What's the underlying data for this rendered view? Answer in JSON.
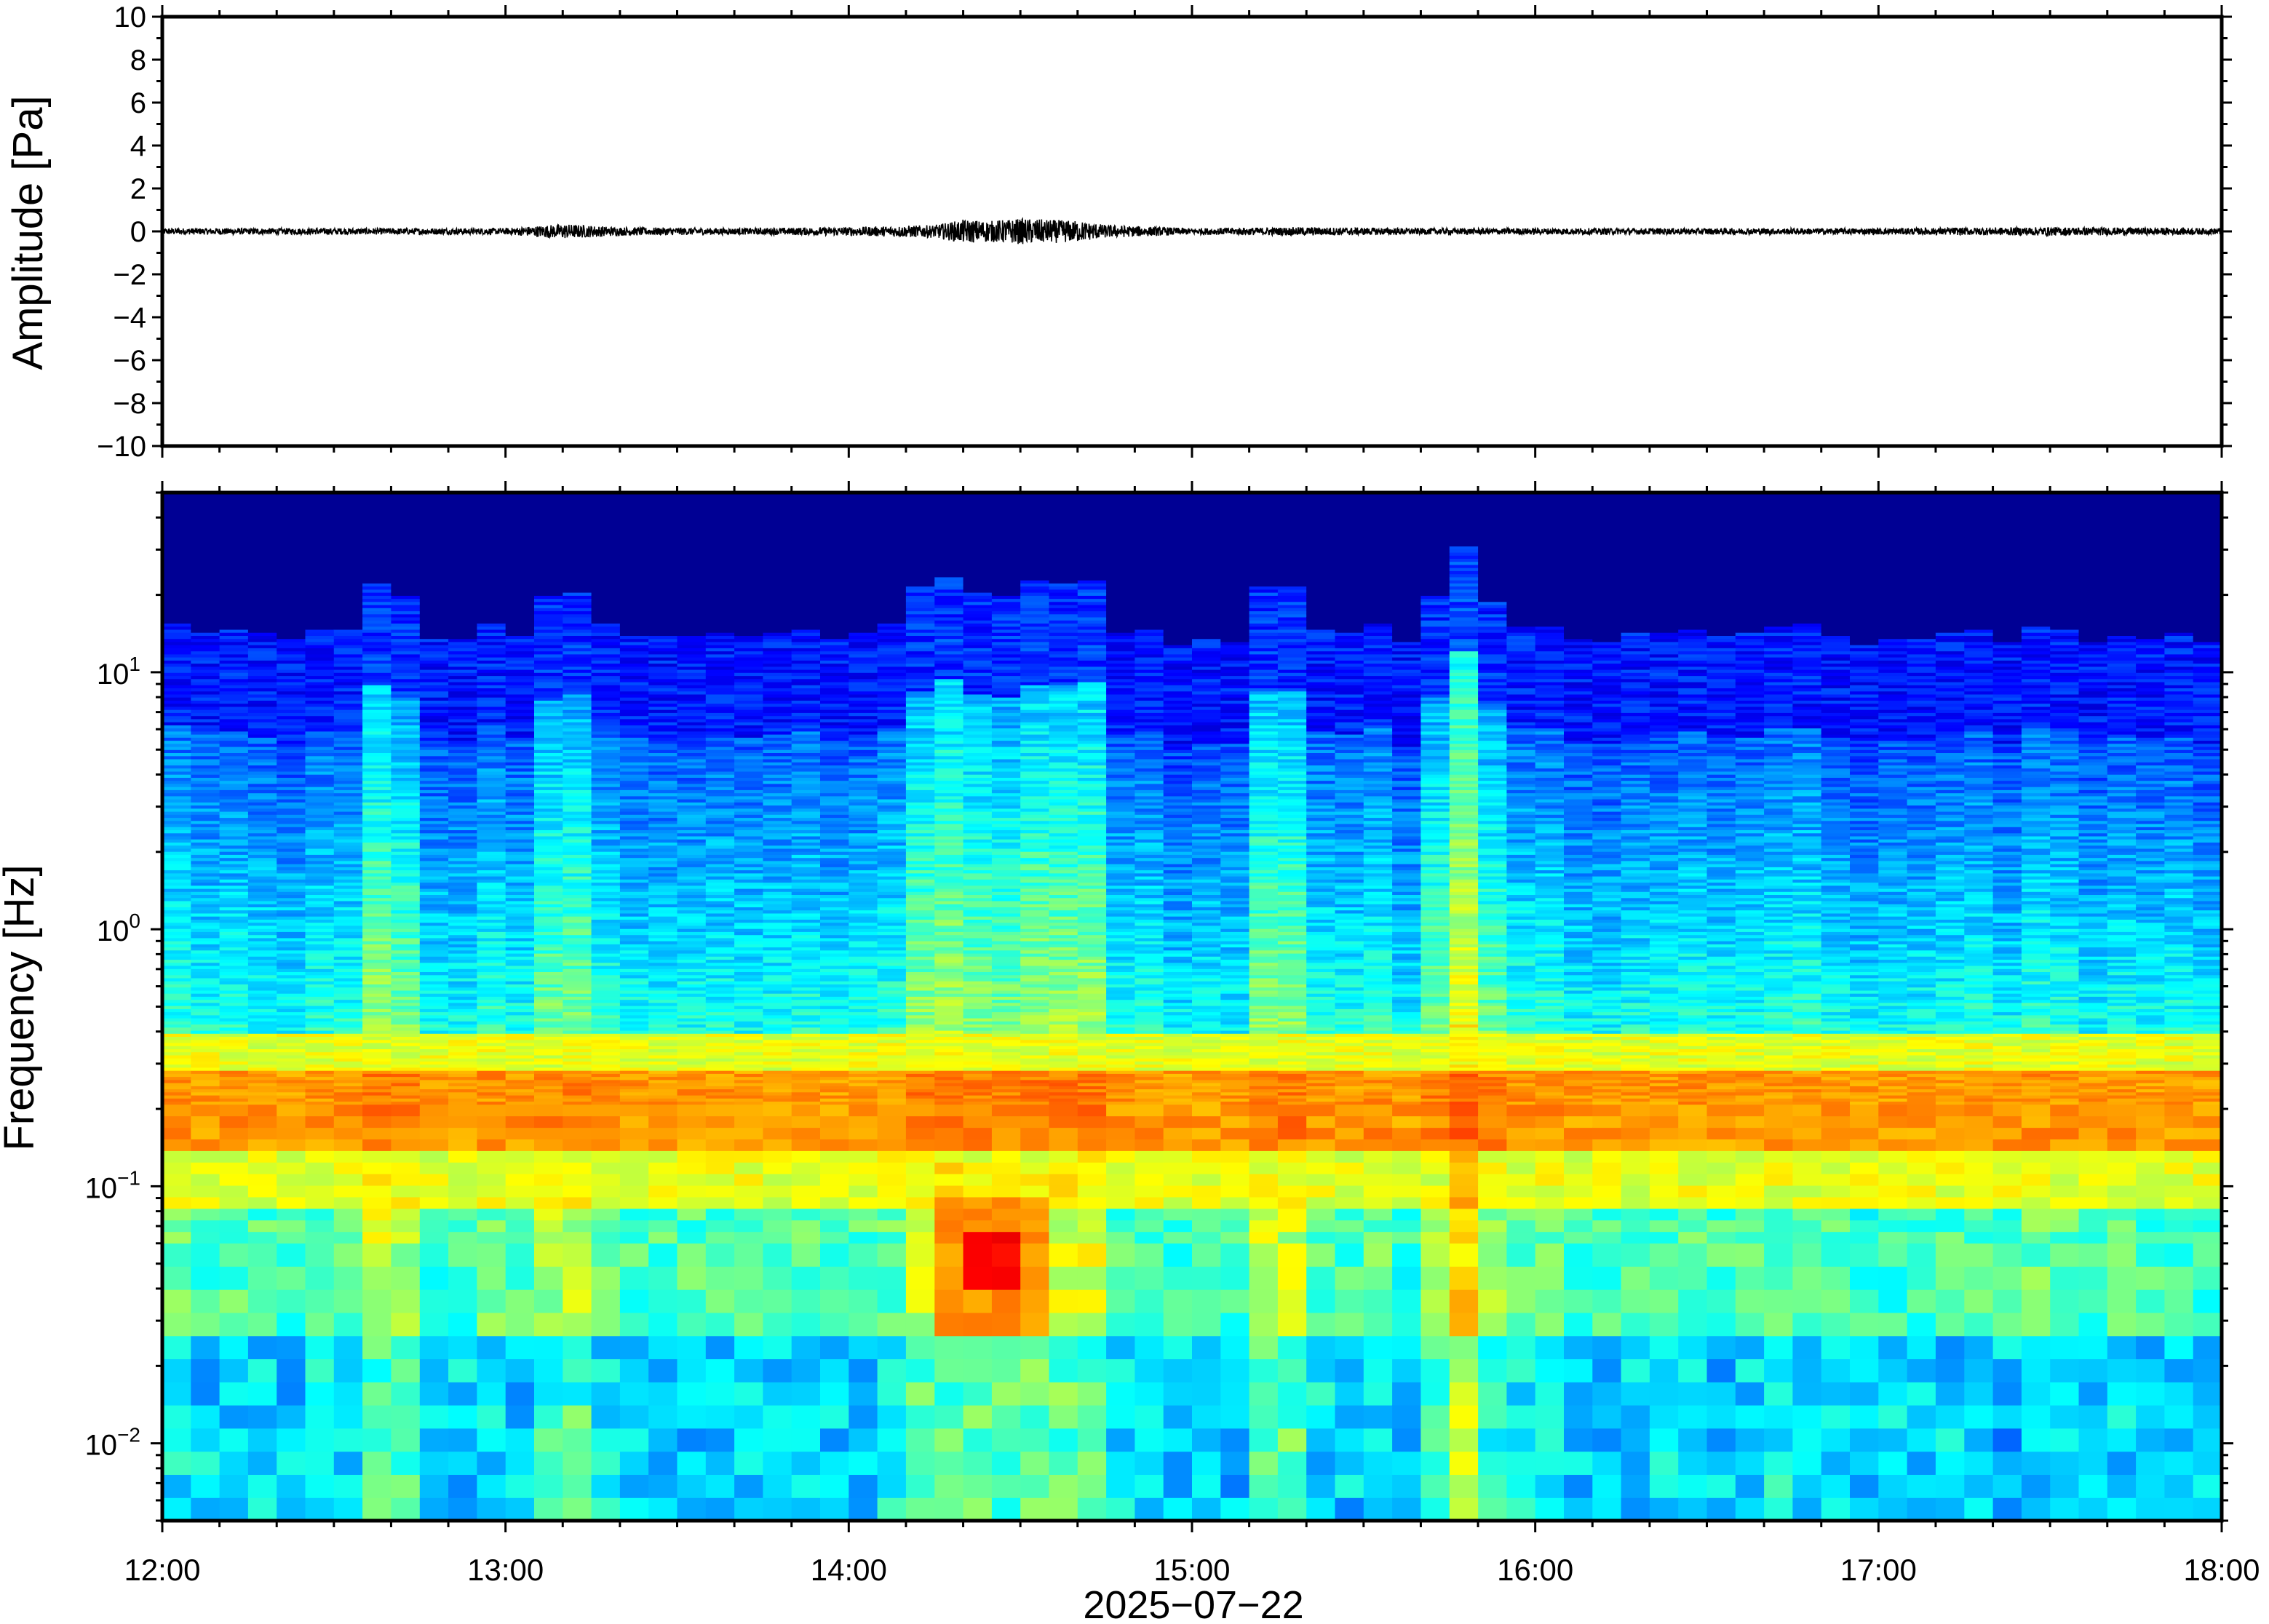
{
  "chart_data": [
    {
      "type": "line",
      "ylabel": "Amplitude [Pa]",
      "ylim": [
        -10,
        10
      ],
      "yticks": [
        10,
        8,
        6,
        4,
        2,
        0,
        -2,
        -4,
        -6,
        -8,
        -10
      ],
      "ytick_labels": [
        "10",
        "8",
        "6",
        "4",
        "2",
        "0",
        "−2",
        "−4",
        "−6",
        "−8",
        "−10"
      ],
      "xlim": [
        "12:00",
        "18:00"
      ],
      "series": [
        {
          "x": [
            "12:00",
            "12:20",
            "12:40",
            "13:00",
            "13:10",
            "13:20",
            "13:40",
            "14:00",
            "14:15",
            "14:20",
            "14:25",
            "14:30",
            "14:35",
            "14:40",
            "14:45",
            "15:00",
            "15:20",
            "15:40",
            "16:00",
            "16:30",
            "17:00",
            "17:30",
            "18:00"
          ],
          "y_envelope": [
            0.15,
            0.15,
            0.15,
            0.15,
            0.35,
            0.2,
            0.15,
            0.2,
            0.3,
            0.55,
            0.5,
            0.6,
            0.55,
            0.5,
            0.3,
            0.15,
            0.2,
            0.15,
            0.15,
            0.15,
            0.15,
            0.2,
            0.15
          ],
          "color": "#000000"
        }
      ]
    },
    {
      "type": "heatmap",
      "xlabel": "2025−07−22",
      "ylabel": "Frequency [Hz]",
      "yscale": "log",
      "ylim": [
        0.005,
        50
      ],
      "yticks": [
        0.01,
        0.1,
        1,
        10
      ],
      "ytick_labels": [
        {
          "base": "10",
          "exp": "−2"
        },
        {
          "base": "10",
          "exp": "−1"
        },
        {
          "base": "10",
          "exp": "0"
        },
        {
          "base": "10",
          "exp": "1"
        }
      ],
      "xticks": [
        "12:00",
        "13:00",
        "14:00",
        "15:00",
        "16:00",
        "17:00",
        "18:00"
      ],
      "xlim": [
        "12:00",
        "18:00"
      ],
      "colormap": "jet",
      "colors": {
        "low": "#0a0a78",
        "high": "#e8621e"
      },
      "features": {
        "noise_ceiling_hz": 9,
        "microseism_band_hz": [
          0.15,
          0.25
        ],
        "active_window": [
          "14:10",
          "14:45"
        ],
        "peak_event": {
          "time": "14:25",
          "freq_hz": [
            0.04,
            0.07
          ]
        },
        "broadband_bursts": [
          "12:40",
          "13:10",
          "15:15",
          "15:45",
          "15:50"
        ]
      }
    }
  ]
}
